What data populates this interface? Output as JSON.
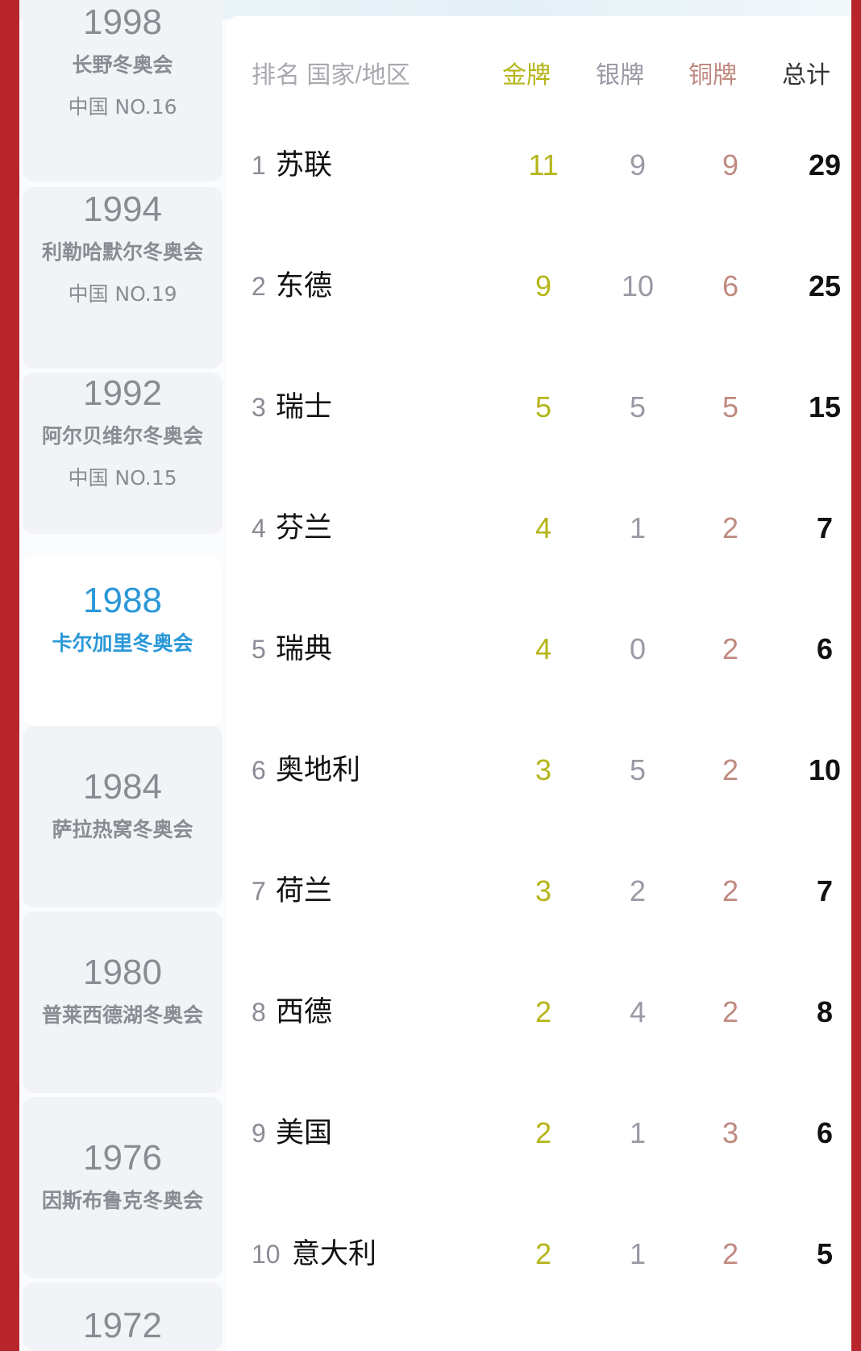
{
  "colors": {
    "gold": "#b5b51a",
    "silver": "#9a9aa5",
    "bronze": "#c08a80",
    "total": "#111111",
    "selected": "#2a98d8",
    "frame": "#b8262b"
  },
  "editions": [
    {
      "year": "1998",
      "name": "长野冬奥会",
      "china_rank": "中国 NO.16"
    },
    {
      "year": "1994",
      "name": "利勒哈默尔冬奥会",
      "china_rank": "中国 NO.19"
    },
    {
      "year": "1992",
      "name": "阿尔贝维尔冬奥会",
      "china_rank": "中国 NO.15"
    },
    {
      "year": "1988",
      "name": "卡尔加里冬奥会",
      "selected": true
    },
    {
      "year": "1984",
      "name": "萨拉热窝冬奥会"
    },
    {
      "year": "1980",
      "name": "普莱西德湖冬奥会"
    },
    {
      "year": "1976",
      "name": "因斯布鲁克冬奥会"
    },
    {
      "year": "1972"
    }
  ],
  "table": {
    "headers": {
      "rank_country": "排名 国家/地区",
      "gold": "金牌",
      "silver": "银牌",
      "bronze": "铜牌",
      "total": "总计"
    },
    "rows": [
      {
        "rank": "1",
        "country": "苏联",
        "gold": "11",
        "silver": "9",
        "bronze": "9",
        "total": "29"
      },
      {
        "rank": "2",
        "country": "东德",
        "gold": "9",
        "silver": "10",
        "bronze": "6",
        "total": "25"
      },
      {
        "rank": "3",
        "country": "瑞士",
        "gold": "5",
        "silver": "5",
        "bronze": "5",
        "total": "15"
      },
      {
        "rank": "4",
        "country": "芬兰",
        "gold": "4",
        "silver": "1",
        "bronze": "2",
        "total": "7"
      },
      {
        "rank": "5",
        "country": "瑞典",
        "gold": "4",
        "silver": "0",
        "bronze": "2",
        "total": "6"
      },
      {
        "rank": "6",
        "country": "奥地利",
        "gold": "3",
        "silver": "5",
        "bronze": "2",
        "total": "10"
      },
      {
        "rank": "7",
        "country": "荷兰",
        "gold": "3",
        "silver": "2",
        "bronze": "2",
        "total": "7"
      },
      {
        "rank": "8",
        "country": "西德",
        "gold": "2",
        "silver": "4",
        "bronze": "2",
        "total": "8"
      },
      {
        "rank": "9",
        "country": "美国",
        "gold": "2",
        "silver": "1",
        "bronze": "3",
        "total": "6"
      },
      {
        "rank": "10",
        "country": "意大利",
        "gold": "2",
        "silver": "1",
        "bronze": "2",
        "total": "5"
      }
    ]
  }
}
